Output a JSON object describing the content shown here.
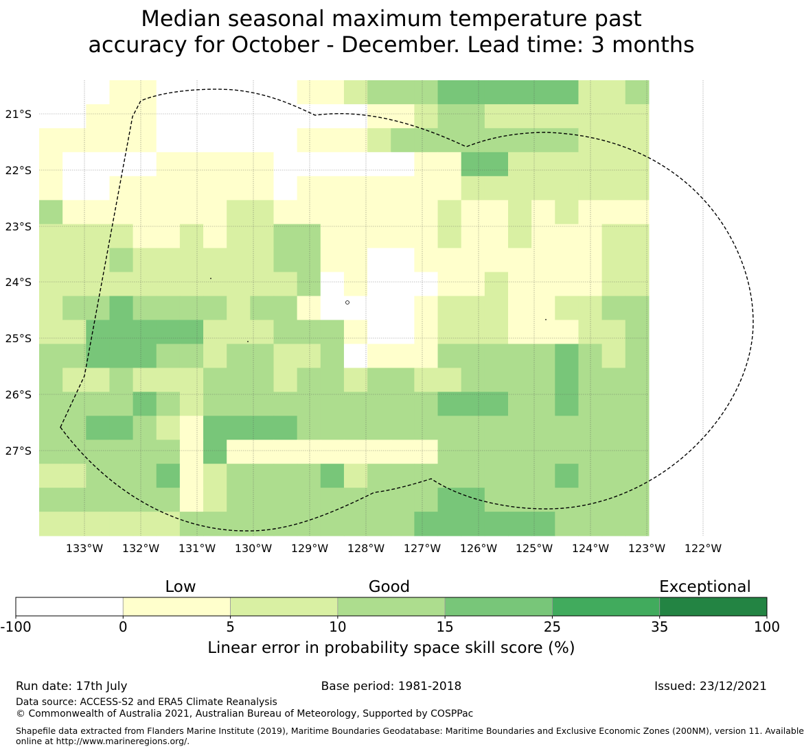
{
  "title_lines": [
    "Median seasonal maximum temperature past",
    "accuracy for October - December. Lead time: 3 months"
  ],
  "map": {
    "lat_ticks": [
      "21°S",
      "22°S",
      "23°S",
      "24°S",
      "25°S",
      "26°S",
      "27°S"
    ],
    "lon_ticks": [
      "133°W",
      "132°W",
      "131°W",
      "130°W",
      "129°W",
      "128°W",
      "127°W",
      "126°W",
      "125°W",
      "124°W",
      "123°W",
      "122°W"
    ],
    "grid_levels": [
      "00011000000112333444444223",
      "00111000000000112332222222",
      "11111000000111233333333222",
      "10000111110000001144222222",
      "10011111110111111122222222",
      "31111111221111111211212111",
      "22221121223311111211211122",
      "22232222223311001111111122",
      "22222222222301000112111122",
      "23343333233100001222112233",
      "22444442223331001222111223",
      "33444332332230111333334323",
      "32232223332332332233334333",
      "33334323333333333444334333",
      "33443214444333333333333333",
      "33333314111111111333333333",
      "22333412333342333333334333",
      "33333312333333333443333333",
      "22222233333333334444443333"
    ],
    "colors": {
      "no-data": "#ffffff",
      "low": "#ffffcc",
      "good-low": "#d9f0a3",
      "good": "#addd8e",
      "good-high": "#78c679",
      "high": "#41ab5d",
      "exceptional": "#238443"
    }
  },
  "colorbar": {
    "categories": [
      "Low",
      "Good",
      "Exceptional"
    ],
    "bins": [
      {
        "from": -100,
        "to": 0,
        "color": "#ffffff"
      },
      {
        "from": 0,
        "to": 5,
        "color": "#ffffcc"
      },
      {
        "from": 5,
        "to": 10,
        "color": "#d9f0a3"
      },
      {
        "from": 10,
        "to": 15,
        "color": "#addd8e"
      },
      {
        "from": 15,
        "to": 25,
        "color": "#78c679"
      },
      {
        "from": 25,
        "to": 35,
        "color": "#41ab5d"
      },
      {
        "from": 35,
        "to": 100,
        "color": "#238443"
      }
    ],
    "tick_labels": [
      "-100",
      "0",
      "5",
      "10",
      "15",
      "25",
      "35",
      "100"
    ],
    "label": "Linear error in probability space skill score (%)"
  },
  "footer": {
    "run_date": "Run date: 17th July",
    "base_period": "Base period: 1981-2018",
    "issued": "Issued: 23/12/2021",
    "data_source": "Data source: ACCESS-S2 and ERA5 Climate Reanalysis",
    "copyright": "© Commonwealth of Australia 2021, Australian Bureau of Meteorology, Supported by COSPPac",
    "shapefile_line1": "Shapefile data extracted from Flanders Marine Institute (2019), Maritime Boundaries Geodatabase: Maritime Boundaries and Exclusive Economic Zones (200NM), version 11. Available",
    "shapefile_line2": "online at http://www.marineregions.org/."
  }
}
